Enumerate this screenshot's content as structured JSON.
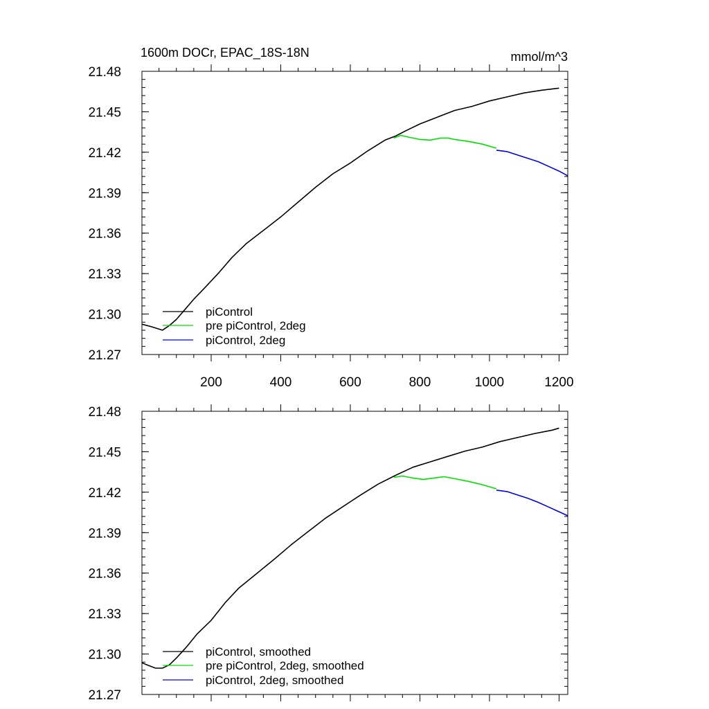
{
  "chart_data": [
    {
      "type": "line",
      "title": "1600m DOCr, EPAC_18S-18N",
      "units": "mmol/m^3",
      "xlim": [
        1,
        1225
      ],
      "ylim": [
        21.27,
        21.48
      ],
      "xticks": [
        200,
        400,
        600,
        800,
        1000,
        1200
      ],
      "xtick_labels": [
        "200",
        "400",
        "600",
        "800",
        "1000",
        "1200"
      ],
      "yticks": [
        21.27,
        21.3,
        21.33,
        21.36,
        21.39,
        21.42,
        21.45,
        21.48
      ],
      "ytick_labels": [
        "21.27",
        "21.30",
        "21.33",
        "21.36",
        "21.39",
        "21.42",
        "21.45",
        "21.48"
      ],
      "series": [
        {
          "name": "piControl",
          "color": "#000000",
          "x": [
            1,
            30,
            60,
            80,
            100,
            120,
            150,
            180,
            220,
            260,
            300,
            350,
            400,
            450,
            500,
            550,
            600,
            650,
            700,
            730,
            760,
            800,
            850,
            900,
            950,
            1000,
            1050,
            1100,
            1150,
            1200
          ],
          "y": [
            21.2925,
            21.2905,
            21.288,
            21.2915,
            21.296,
            21.302,
            21.311,
            21.319,
            21.33,
            21.342,
            21.352,
            21.362,
            21.372,
            21.383,
            21.394,
            21.404,
            21.412,
            21.421,
            21.429,
            21.432,
            21.436,
            21.441,
            21.446,
            21.451,
            21.454,
            21.458,
            21.461,
            21.464,
            21.466,
            21.4675
          ]
        },
        {
          "name": "pre piControl, 2deg",
          "color": "#00e000",
          "x": [
            725,
            745,
            770,
            800,
            830,
            860,
            880,
            900,
            940,
            980,
            1020
          ],
          "y": [
            21.4305,
            21.4325,
            21.431,
            21.4295,
            21.429,
            21.4305,
            21.4305,
            21.4295,
            21.428,
            21.426,
            21.423
          ]
        },
        {
          "name": "piControl, 2deg",
          "color": "#0000e0",
          "x": [
            1020,
            1050,
            1080,
            1110,
            1140,
            1170,
            1200,
            1225
          ],
          "y": [
            21.4215,
            21.4205,
            21.418,
            21.4155,
            21.413,
            21.4095,
            21.406,
            21.4025
          ]
        }
      ],
      "legend": {
        "placement": "bottom-left",
        "entries": [
          "piControl",
          "pre piControl, 2deg",
          "piControl, 2deg"
        ]
      }
    },
    {
      "type": "line",
      "title": "",
      "xlim": [
        1,
        1225
      ],
      "ylim": [
        21.27,
        21.48
      ],
      "yticks": [
        21.27,
        21.3,
        21.33,
        21.36,
        21.39,
        21.42,
        21.45,
        21.48
      ],
      "ytick_labels": [
        "21.27",
        "21.30",
        "21.33",
        "21.36",
        "21.39",
        "21.42",
        "21.45",
        "21.48"
      ],
      "series": [
        {
          "name": "piControl, smoothed",
          "color": "#000000",
          "x": [
            1,
            20,
            40,
            60,
            80,
            100,
            130,
            160,
            200,
            240,
            280,
            330,
            380,
            430,
            480,
            530,
            580,
            630,
            680,
            730,
            780,
            830,
            880,
            930,
            980,
            1030,
            1080,
            1130,
            1180,
            1200
          ],
          "y": [
            21.2935,
            21.2915,
            21.2895,
            21.2895,
            21.292,
            21.297,
            21.3055,
            21.315,
            21.325,
            21.338,
            21.349,
            21.3595,
            21.37,
            21.381,
            21.391,
            21.401,
            21.4095,
            21.418,
            21.426,
            21.4325,
            21.4385,
            21.4425,
            21.4465,
            21.4505,
            21.4535,
            21.4575,
            21.4605,
            21.4635,
            21.466,
            21.4675
          ]
        },
        {
          "name": "pre piControl, 2deg, smoothed",
          "color": "#00e000",
          "x": [
            725,
            750,
            780,
            810,
            840,
            870,
            900,
            940,
            980,
            1020
          ],
          "y": [
            21.431,
            21.432,
            21.4305,
            21.4295,
            21.4305,
            21.4315,
            21.43,
            21.428,
            21.4255,
            21.4225
          ]
        },
        {
          "name": "piControl, 2deg, smoothed",
          "color": "#0000e0",
          "x": [
            1020,
            1050,
            1080,
            1110,
            1140,
            1170,
            1200,
            1225
          ],
          "y": [
            21.4215,
            21.4205,
            21.418,
            21.4155,
            21.4125,
            21.409,
            21.4055,
            21.4025
          ]
        }
      ],
      "legend": {
        "placement": "bottom-left",
        "entries": [
          "piControl, smoothed",
          "pre piControl, 2deg, smoothed",
          "piControl, 2deg, smoothed"
        ]
      }
    }
  ]
}
